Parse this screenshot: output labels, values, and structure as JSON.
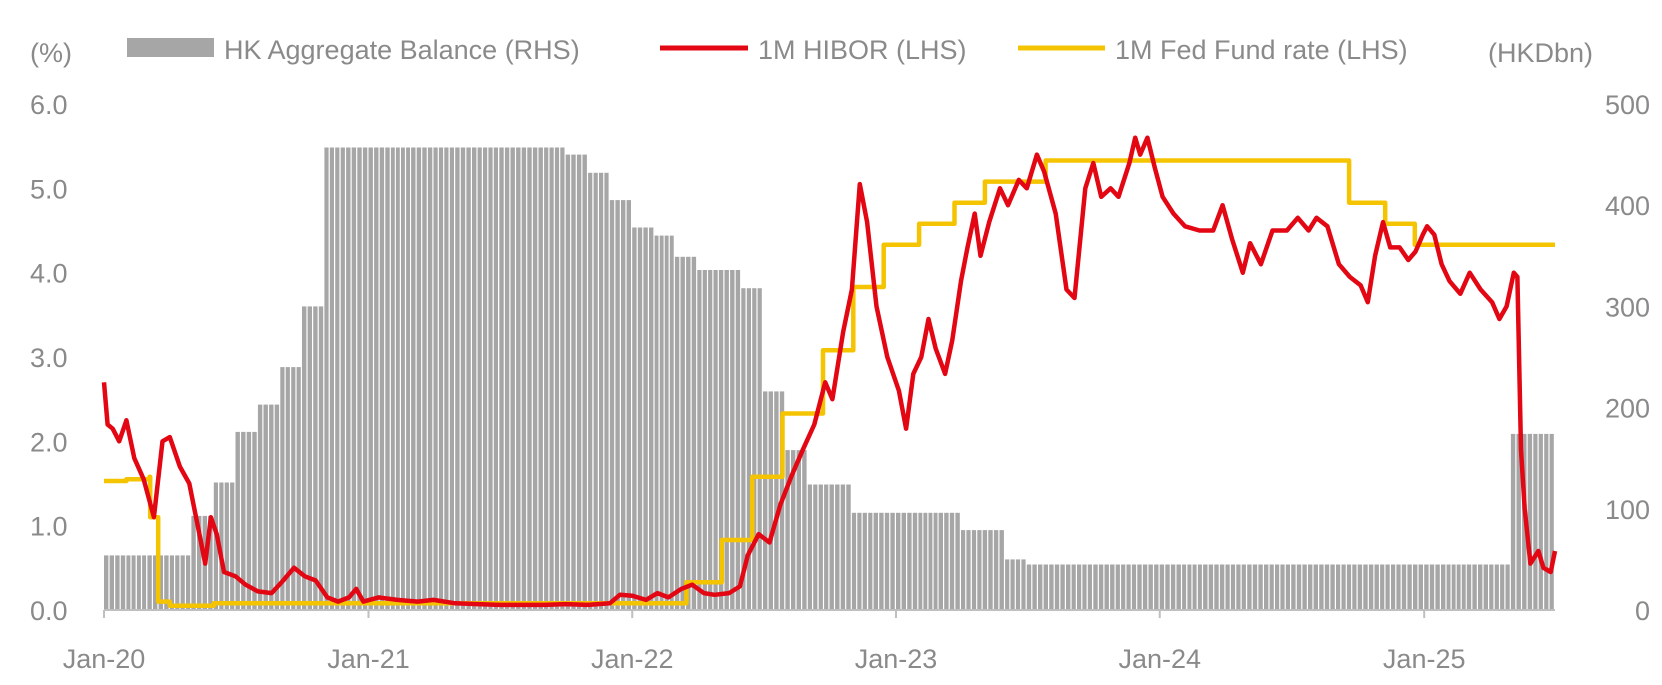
{
  "chart_data": {
    "type": "bar+line",
    "left_unit": "(%)",
    "right_unit": "(HKDbn)",
    "y_left": {
      "min": 0,
      "max": 6,
      "ticks": [
        "0.0",
        "1.0",
        "2.0",
        "3.0",
        "4.0",
        "5.0",
        "6.0"
      ],
      "tick_values": [
        0,
        1,
        2,
        3,
        4,
        5,
        6
      ]
    },
    "y_right": {
      "min": 0,
      "max": 500,
      "ticks": [
        "0",
        "100",
        "200",
        "300",
        "400",
        "500"
      ],
      "tick_values": [
        0,
        100,
        200,
        300,
        400,
        500
      ]
    },
    "x_axis": {
      "start": "2020-01",
      "end": "2025-07",
      "tick_labels": [
        "Jan-20",
        "Jan-21",
        "Jan-22",
        "Jan-23",
        "Jan-24",
        "Jan-25"
      ],
      "tick_dates": [
        "2020-01",
        "2021-01",
        "2022-01",
        "2023-01",
        "2024-01",
        "2025-01"
      ]
    },
    "legend": {
      "placement": "top"
    },
    "series": [
      {
        "name": "HK Aggregate Balance (RHS)",
        "kind": "bar",
        "axis": "right",
        "color": "#a6a6a6",
        "points": [
          [
            "2020-01",
            54
          ],
          [
            "2020-02",
            54
          ],
          [
            "2020-03",
            54
          ],
          [
            "2020-04",
            54
          ],
          [
            "2020-05",
            93
          ],
          [
            "2020-06",
            126
          ],
          [
            "2020-07",
            176
          ],
          [
            "2020-08",
            203
          ],
          [
            "2020-09",
            240
          ],
          [
            "2020-10",
            300
          ],
          [
            "2020-11",
            457
          ],
          [
            "2020-12",
            457
          ],
          [
            "2021-01",
            457
          ],
          [
            "2021-02",
            457
          ],
          [
            "2021-03",
            457
          ],
          [
            "2021-04",
            457
          ],
          [
            "2021-05",
            457
          ],
          [
            "2021-06",
            457
          ],
          [
            "2021-07",
            457
          ],
          [
            "2021-08",
            457
          ],
          [
            "2021-09",
            457
          ],
          [
            "2021-10",
            450
          ],
          [
            "2021-11",
            432
          ],
          [
            "2021-12",
            405
          ],
          [
            "2022-01",
            378
          ],
          [
            "2022-02",
            370
          ],
          [
            "2022-03",
            349
          ],
          [
            "2022-04",
            336
          ],
          [
            "2022-05",
            336
          ],
          [
            "2022-06",
            318
          ],
          [
            "2022-07",
            216
          ],
          [
            "2022-08",
            158
          ],
          [
            "2022-09",
            124
          ],
          [
            "2022-10",
            124
          ],
          [
            "2022-11",
            96
          ],
          [
            "2022-12",
            96
          ],
          [
            "2023-01",
            96
          ],
          [
            "2023-02",
            96
          ],
          [
            "2023-03",
            96
          ],
          [
            "2023-04",
            79
          ],
          [
            "2023-05",
            79
          ],
          [
            "2023-06",
            50
          ],
          [
            "2023-07",
            45
          ],
          [
            "2023-08",
            45
          ],
          [
            "2023-09",
            45
          ],
          [
            "2023-10",
            45
          ],
          [
            "2023-11",
            45
          ],
          [
            "2023-12",
            45
          ],
          [
            "2024-01",
            45
          ],
          [
            "2024-02",
            45
          ],
          [
            "2024-03",
            45
          ],
          [
            "2024-04",
            45
          ],
          [
            "2024-05",
            45
          ],
          [
            "2024-06",
            45
          ],
          [
            "2024-07",
            45
          ],
          [
            "2024-08",
            45
          ],
          [
            "2024-09",
            45
          ],
          [
            "2024-10",
            45
          ],
          [
            "2024-11",
            45
          ],
          [
            "2024-12",
            45
          ],
          [
            "2025-01",
            45
          ],
          [
            "2025-02",
            45
          ],
          [
            "2025-03",
            45
          ],
          [
            "2025-04",
            45
          ],
          [
            "2025-05",
            174
          ],
          [
            "2025-06",
            174
          ]
        ]
      },
      {
        "name": "1M HIBOR (LHS)",
        "kind": "line",
        "axis": "left",
        "color": "#e30613",
        "points": [
          [
            "2020-01-01",
            2.7
          ],
          [
            "2020-01-06",
            2.2
          ],
          [
            "2020-01-13",
            2.15
          ],
          [
            "2020-01-22",
            2.0
          ],
          [
            "2020-02-01",
            2.25
          ],
          [
            "2020-02-12",
            1.8
          ],
          [
            "2020-02-25",
            1.55
          ],
          [
            "2020-03-10",
            1.1
          ],
          [
            "2020-03-22",
            2.0
          ],
          [
            "2020-04-01",
            2.05
          ],
          [
            "2020-04-15",
            1.7
          ],
          [
            "2020-04-28",
            1.5
          ],
          [
            "2020-05-12",
            0.9
          ],
          [
            "2020-05-20",
            0.55
          ],
          [
            "2020-05-28",
            1.1
          ],
          [
            "2020-06-05",
            0.9
          ],
          [
            "2020-06-15",
            0.45
          ],
          [
            "2020-07-01",
            0.4
          ],
          [
            "2020-07-15",
            0.3
          ],
          [
            "2020-08-01",
            0.22
          ],
          [
            "2020-08-20",
            0.2
          ],
          [
            "2020-09-05",
            0.35
          ],
          [
            "2020-09-20",
            0.5
          ],
          [
            "2020-10-05",
            0.4
          ],
          [
            "2020-10-20",
            0.35
          ],
          [
            "2020-11-05",
            0.15
          ],
          [
            "2020-11-20",
            0.1
          ],
          [
            "2020-12-05",
            0.15
          ],
          [
            "2020-12-15",
            0.25
          ],
          [
            "2020-12-25",
            0.1
          ],
          [
            "2021-01-15",
            0.15
          ],
          [
            "2021-02-10",
            0.12
          ],
          [
            "2021-03-10",
            0.1
          ],
          [
            "2021-04-01",
            0.12
          ],
          [
            "2021-05-01",
            0.08
          ],
          [
            "2021-06-01",
            0.07
          ],
          [
            "2021-07-01",
            0.06
          ],
          [
            "2021-08-01",
            0.06
          ],
          [
            "2021-09-01",
            0.06
          ],
          [
            "2021-10-01",
            0.07
          ],
          [
            "2021-11-01",
            0.06
          ],
          [
            "2021-12-01",
            0.08
          ],
          [
            "2021-12-15",
            0.18
          ],
          [
            "2022-01-01",
            0.17
          ],
          [
            "2022-01-20",
            0.12
          ],
          [
            "2022-02-05",
            0.2
          ],
          [
            "2022-02-20",
            0.15
          ],
          [
            "2022-03-10",
            0.25
          ],
          [
            "2022-03-25",
            0.3
          ],
          [
            "2022-04-10",
            0.2
          ],
          [
            "2022-04-25",
            0.18
          ],
          [
            "2022-05-15",
            0.2
          ],
          [
            "2022-05-30",
            0.28
          ],
          [
            "2022-06-10",
            0.65
          ],
          [
            "2022-06-25",
            0.9
          ],
          [
            "2022-07-10",
            0.8
          ],
          [
            "2022-07-25",
            1.25
          ],
          [
            "2022-08-10",
            1.6
          ],
          [
            "2022-08-25",
            1.9
          ],
          [
            "2022-09-10",
            2.2
          ],
          [
            "2022-09-25",
            2.7
          ],
          [
            "2022-10-05",
            2.5
          ],
          [
            "2022-10-20",
            3.3
          ],
          [
            "2022-11-01",
            3.8
          ],
          [
            "2022-11-12",
            5.05
          ],
          [
            "2022-11-22",
            4.6
          ],
          [
            "2022-12-05",
            3.6
          ],
          [
            "2022-12-20",
            3.0
          ],
          [
            "2023-01-05",
            2.6
          ],
          [
            "2023-01-15",
            2.15
          ],
          [
            "2023-01-25",
            2.8
          ],
          [
            "2023-02-05",
            3.0
          ],
          [
            "2023-02-15",
            3.45
          ],
          [
            "2023-02-25",
            3.1
          ],
          [
            "2023-03-10",
            2.8
          ],
          [
            "2023-03-20",
            3.2
          ],
          [
            "2023-04-01",
            3.9
          ],
          [
            "2023-04-10",
            4.3
          ],
          [
            "2023-04-20",
            4.7
          ],
          [
            "2023-04-28",
            4.2
          ],
          [
            "2023-05-10",
            4.6
          ],
          [
            "2023-05-25",
            5.0
          ],
          [
            "2023-06-05",
            4.8
          ],
          [
            "2023-06-20",
            5.1
          ],
          [
            "2023-07-01",
            5.0
          ],
          [
            "2023-07-15",
            5.4
          ],
          [
            "2023-07-25",
            5.2
          ],
          [
            "2023-08-10",
            4.7
          ],
          [
            "2023-08-25",
            3.8
          ],
          [
            "2023-09-05",
            3.7
          ],
          [
            "2023-09-20",
            5.0
          ],
          [
            "2023-10-01",
            5.3
          ],
          [
            "2023-10-12",
            4.9
          ],
          [
            "2023-10-25",
            5.0
          ],
          [
            "2023-11-05",
            4.9
          ],
          [
            "2023-11-20",
            5.3
          ],
          [
            "2023-11-28",
            5.6
          ],
          [
            "2023-12-05",
            5.4
          ],
          [
            "2023-12-15",
            5.6
          ],
          [
            "2023-12-25",
            5.25
          ],
          [
            "2024-01-05",
            4.9
          ],
          [
            "2024-01-20",
            4.7
          ],
          [
            "2024-02-05",
            4.55
          ],
          [
            "2024-02-25",
            4.5
          ],
          [
            "2024-03-15",
            4.5
          ],
          [
            "2024-03-28",
            4.8
          ],
          [
            "2024-04-10",
            4.4
          ],
          [
            "2024-04-25",
            4.0
          ],
          [
            "2024-05-05",
            4.35
          ],
          [
            "2024-05-20",
            4.1
          ],
          [
            "2024-06-05",
            4.5
          ],
          [
            "2024-06-25",
            4.5
          ],
          [
            "2024-07-10",
            4.65
          ],
          [
            "2024-07-25",
            4.5
          ],
          [
            "2024-08-05",
            4.65
          ],
          [
            "2024-08-20",
            4.55
          ],
          [
            "2024-09-05",
            4.1
          ],
          [
            "2024-09-20",
            3.95
          ],
          [
            "2024-10-05",
            3.85
          ],
          [
            "2024-10-15",
            3.65
          ],
          [
            "2024-10-25",
            4.2
          ],
          [
            "2024-11-05",
            4.6
          ],
          [
            "2024-11-15",
            4.3
          ],
          [
            "2024-11-28",
            4.3
          ],
          [
            "2024-12-10",
            4.15
          ],
          [
            "2024-12-20",
            4.25
          ],
          [
            "2024-12-30",
            4.45
          ],
          [
            "2025-01-05",
            4.55
          ],
          [
            "2025-01-15",
            4.45
          ],
          [
            "2025-01-25",
            4.1
          ],
          [
            "2025-02-05",
            3.9
          ],
          [
            "2025-02-20",
            3.75
          ],
          [
            "2025-03-05",
            4.0
          ],
          [
            "2025-03-20",
            3.8
          ],
          [
            "2025-04-05",
            3.65
          ],
          [
            "2025-04-15",
            3.45
          ],
          [
            "2025-04-25",
            3.6
          ],
          [
            "2025-05-05",
            4.0
          ],
          [
            "2025-05-10",
            3.95
          ],
          [
            "2025-05-15",
            1.9
          ],
          [
            "2025-05-20",
            1.2
          ],
          [
            "2025-05-28",
            0.55
          ],
          [
            "2025-06-08",
            0.7
          ],
          [
            "2025-06-15",
            0.5
          ],
          [
            "2025-06-25",
            0.45
          ],
          [
            "2025-07-01",
            0.7
          ]
        ]
      },
      {
        "name": "1M Fed Fund rate (LHS)",
        "kind": "step",
        "axis": "left",
        "color": "#f5c400",
        "points": [
          [
            "2020-01-01",
            1.53
          ],
          [
            "2020-02-01",
            1.55
          ],
          [
            "2020-03-04",
            1.58
          ],
          [
            "2020-03-05",
            1.1
          ],
          [
            "2020-03-16",
            0.1
          ],
          [
            "2020-04-01",
            0.05
          ],
          [
            "2020-06-01",
            0.08
          ],
          [
            "2021-12-31",
            0.08
          ],
          [
            "2022-03-17",
            0.33
          ],
          [
            "2022-05-05",
            0.83
          ],
          [
            "2022-06-16",
            1.58
          ],
          [
            "2022-07-28",
            2.33
          ],
          [
            "2022-09-22",
            3.08
          ],
          [
            "2022-11-03",
            3.83
          ],
          [
            "2022-12-15",
            4.33
          ],
          [
            "2023-02-02",
            4.58
          ],
          [
            "2023-03-23",
            4.83
          ],
          [
            "2023-05-04",
            5.08
          ],
          [
            "2023-07-27",
            5.33
          ],
          [
            "2024-09-19",
            4.83
          ],
          [
            "2024-11-08",
            4.58
          ],
          [
            "2024-12-19",
            4.33
          ],
          [
            "2025-07-01",
            4.33
          ]
        ]
      }
    ]
  }
}
